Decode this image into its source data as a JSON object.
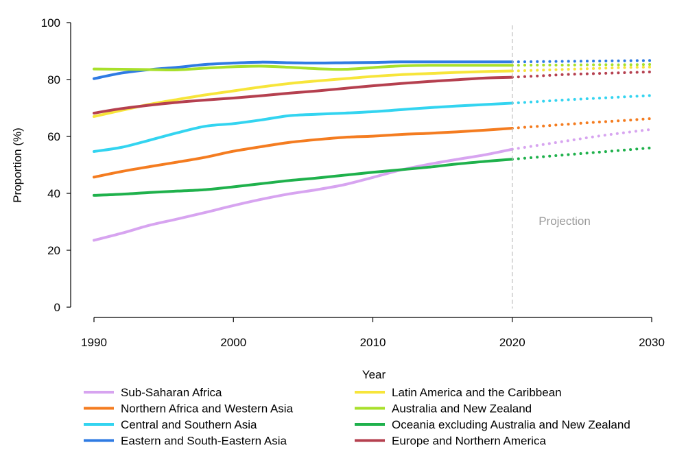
{
  "chart_data": {
    "type": "line",
    "xlabel": "Year",
    "ylabel": "Proportion (%)",
    "xlim": [
      1990,
      2030
    ],
    "ylim": [
      0,
      100
    ],
    "x_ticks": [
      "1990",
      "2000",
      "2010",
      "2020",
      "2030"
    ],
    "y_ticks": [
      "0",
      "20",
      "40",
      "60",
      "80",
      "100"
    ],
    "grid": false,
    "legend_position": "bottom",
    "projection_start": 2020,
    "projection_label": "Projection",
    "series": [
      {
        "name": "Sub-Saharan Africa",
        "color": "#d7a4f0",
        "x": [
          1990,
          1992,
          1994,
          1996,
          1998,
          2000,
          2002,
          2004,
          2006,
          2008,
          2010,
          2012,
          2014,
          2016,
          2018,
          2020
        ],
        "y": [
          23.5,
          26,
          28.8,
          31,
          33.3,
          35.7,
          37.9,
          39.8,
          41.3,
          43.1,
          45.6,
          48.2,
          50.2,
          51.9,
          53.5,
          55.5
        ],
        "proj_x": [
          2020,
          2022,
          2024,
          2026,
          2028,
          2030
        ],
        "proj_y": [
          55.5,
          57,
          58.5,
          60,
          61.3,
          62.5
        ]
      },
      {
        "name": "Northern Africa and Western Asia",
        "color": "#f47c20",
        "x": [
          1990,
          1992,
          1994,
          1996,
          1998,
          2000,
          2002,
          2004,
          2006,
          2008,
          2010,
          2012,
          2014,
          2016,
          2018,
          2020
        ],
        "y": [
          45.7,
          47.7,
          49.4,
          51,
          52.7,
          54.8,
          56.4,
          57.9,
          58.9,
          59.7,
          60.1,
          60.7,
          61.1,
          61.6,
          62.2,
          62.9
        ],
        "proj_x": [
          2020,
          2022,
          2024,
          2026,
          2028,
          2030
        ],
        "proj_y": [
          62.9,
          63.6,
          64.3,
          65,
          65.6,
          66.3
        ]
      },
      {
        "name": "Central and Southern Asia",
        "color": "#33d4f0",
        "x": [
          1990,
          1992,
          1994,
          1996,
          1998,
          2000,
          2002,
          2004,
          2006,
          2008,
          2010,
          2012,
          2014,
          2016,
          2018,
          2020
        ],
        "y": [
          54.7,
          56.2,
          58.7,
          61.3,
          63.6,
          64.5,
          65.8,
          67.3,
          67.8,
          68.2,
          68.7,
          69.4,
          70.1,
          70.7,
          71.2,
          71.7
        ],
        "proj_x": [
          2020,
          2022,
          2024,
          2026,
          2028,
          2030
        ],
        "proj_y": [
          71.7,
          72.3,
          72.9,
          73.4,
          73.9,
          74.4
        ]
      },
      {
        "name": "Eastern and South-Eastern Asia",
        "color": "#2f7be3",
        "x": [
          1990,
          1992,
          1994,
          1996,
          1998,
          2000,
          2002,
          2004,
          2006,
          2008,
          2010,
          2012,
          2014,
          2016,
          2018,
          2020
        ],
        "y": [
          80.3,
          82.3,
          83.5,
          84.3,
          85.3,
          85.8,
          86.1,
          85.9,
          85.8,
          85.9,
          86,
          86.2,
          86.2,
          86.2,
          86.2,
          86.2
        ],
        "proj_x": [
          2020,
          2022,
          2024,
          2026,
          2028,
          2030
        ],
        "proj_y": [
          86.2,
          86.3,
          86.4,
          86.5,
          86.6,
          86.7
        ]
      },
      {
        "name": "Latin America and the Caribbean",
        "color": "#f7e53a",
        "x": [
          1990,
          1992,
          1994,
          1996,
          1998,
          2000,
          2002,
          2004,
          2006,
          2008,
          2010,
          2012,
          2014,
          2016,
          2018,
          2020
        ],
        "y": [
          67,
          69.2,
          71.3,
          73,
          74.6,
          76,
          77.4,
          78.6,
          79.5,
          80.3,
          81.1,
          81.7,
          82.1,
          82.5,
          82.8,
          83
        ],
        "proj_x": [
          2020,
          2022,
          2024,
          2026,
          2028,
          2030
        ],
        "proj_y": [
          83,
          83.3,
          83.6,
          83.9,
          84.2,
          84.4
        ]
      },
      {
        "name": "Australia and New Zealand",
        "color": "#a8e02b",
        "x": [
          1990,
          1992,
          1994,
          1996,
          1998,
          2000,
          2002,
          2004,
          2006,
          2008,
          2010,
          2012,
          2014,
          2016,
          2018,
          2020
        ],
        "y": [
          83.7,
          83.6,
          83.5,
          83.4,
          84,
          84.5,
          84.7,
          84.3,
          83.8,
          83.6,
          84.2,
          84.8,
          85,
          85,
          85,
          85
        ],
        "proj_x": [
          2020,
          2022,
          2024,
          2026,
          2028,
          2030
        ],
        "proj_y": [
          85,
          85.1,
          85.1,
          85.2,
          85.2,
          85.3
        ]
      },
      {
        "name": "Oceania excluding Australia and New Zealand",
        "color": "#1fb14c",
        "x": [
          1990,
          1992,
          1994,
          1996,
          1998,
          2000,
          2002,
          2004,
          2006,
          2008,
          2010,
          2012,
          2014,
          2016,
          2018,
          2020
        ],
        "y": [
          39.3,
          39.7,
          40.3,
          40.8,
          41.3,
          42.3,
          43.4,
          44.5,
          45.4,
          46.4,
          47.4,
          48.3,
          49.2,
          50.3,
          51.2,
          52
        ],
        "proj_x": [
          2020,
          2022,
          2024,
          2026,
          2028,
          2030
        ],
        "proj_y": [
          52,
          52.8,
          53.6,
          54.4,
          55.2,
          56
        ]
      },
      {
        "name": "Europe and Northern America",
        "color": "#b5404f",
        "x": [
          1990,
          1992,
          1994,
          1996,
          1998,
          2000,
          2002,
          2004,
          2006,
          2008,
          2010,
          2012,
          2014,
          2016,
          2018,
          2020
        ],
        "y": [
          68.2,
          69.8,
          71,
          72,
          72.8,
          73.5,
          74.3,
          75.2,
          76,
          76.9,
          77.8,
          78.6,
          79.3,
          79.9,
          80.5,
          80.8
        ],
        "proj_x": [
          2020,
          2022,
          2024,
          2026,
          2028,
          2030
        ],
        "proj_y": [
          80.8,
          81.3,
          81.8,
          82.1,
          82.4,
          82.7
        ]
      }
    ]
  }
}
